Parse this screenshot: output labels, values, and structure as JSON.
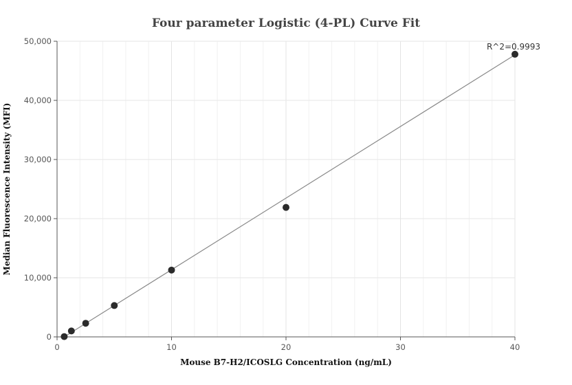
{
  "chart_data": {
    "type": "scatter",
    "title": "Four parameter Logistic (4-PL) Curve Fit",
    "xlabel": "Mouse B7-H2/ICOSLG Concentration (ng/mL)",
    "ylabel": "Median Fluorescence Intensity (MFI)",
    "xlim": [
      0,
      40
    ],
    "ylim": [
      0,
      50000
    ],
    "x_ticks": [
      0,
      10,
      20,
      30,
      40
    ],
    "x_tick_labels": [
      "0",
      "10",
      "20",
      "30",
      "40"
    ],
    "y_ticks": [
      0,
      10000,
      20000,
      30000,
      40000,
      50000
    ],
    "y_tick_labels": [
      "0",
      "10,000",
      "20,000",
      "30,000",
      "40,000",
      "50,000"
    ],
    "grid": true,
    "points": [
      {
        "x": 0.625,
        "y": 50
      },
      {
        "x": 1.25,
        "y": 1000
      },
      {
        "x": 2.5,
        "y": 2300
      },
      {
        "x": 5,
        "y": 5300
      },
      {
        "x": 10,
        "y": 11300
      },
      {
        "x": 20,
        "y": 21900
      },
      {
        "x": 40,
        "y": 47800
      }
    ],
    "fit_line": [
      {
        "x": 0.625,
        "y": 0
      },
      {
        "x": 40,
        "y": 47700
      }
    ],
    "annotation": "R^2=0.9993",
    "colors": {
      "point": "#2b2b2b",
      "line": "#888888",
      "grid": "#e6e6e6",
      "axis": "#555555"
    }
  }
}
